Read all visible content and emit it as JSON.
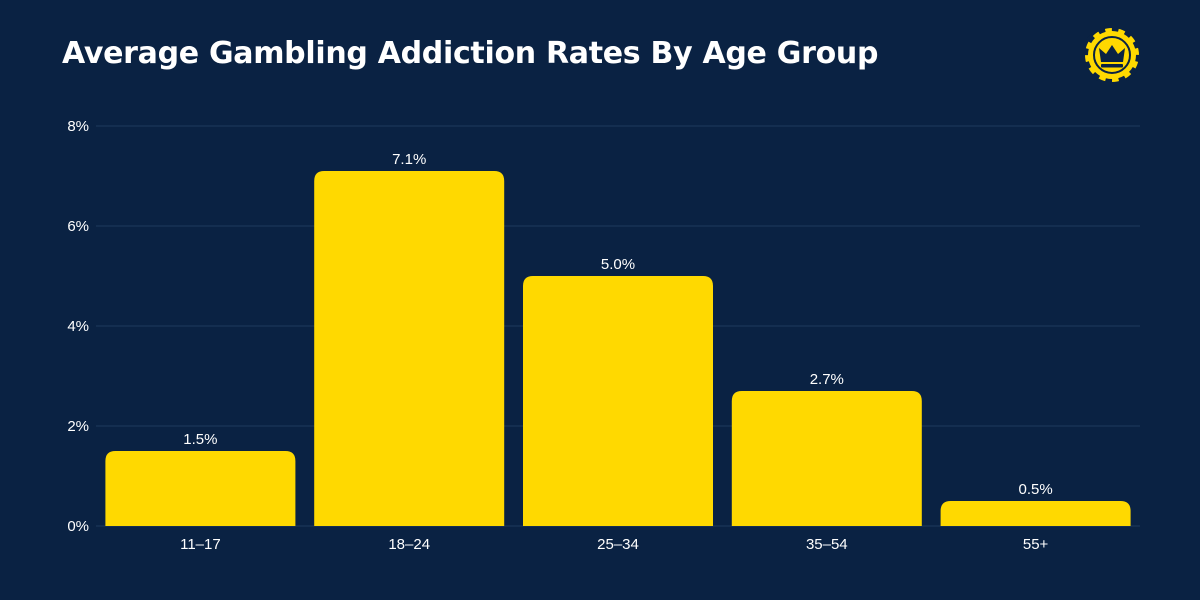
{
  "chart_data": {
    "type": "bar",
    "title": "Average Gambling Addiction Rates By Age Group",
    "categories": [
      "11–17",
      "18–24",
      "25–34",
      "35–54",
      "55+"
    ],
    "values": [
      1.5,
      7.1,
      5.0,
      2.7,
      0.5
    ],
    "data_labels": [
      "1.5%",
      "7.1%",
      "5.0%",
      "2.7%",
      "0.5%"
    ],
    "y_ticks": [
      0,
      2,
      4,
      6,
      8
    ],
    "y_tick_labels": [
      "0%",
      "2%",
      "4%",
      "6%",
      "8%"
    ],
    "ylim": [
      0,
      8
    ],
    "grid": true,
    "bar_color": "#ffd900",
    "background_color": "#0a2243"
  },
  "logo": {
    "icon": "crown-chip-icon",
    "color": "#ffd900"
  }
}
